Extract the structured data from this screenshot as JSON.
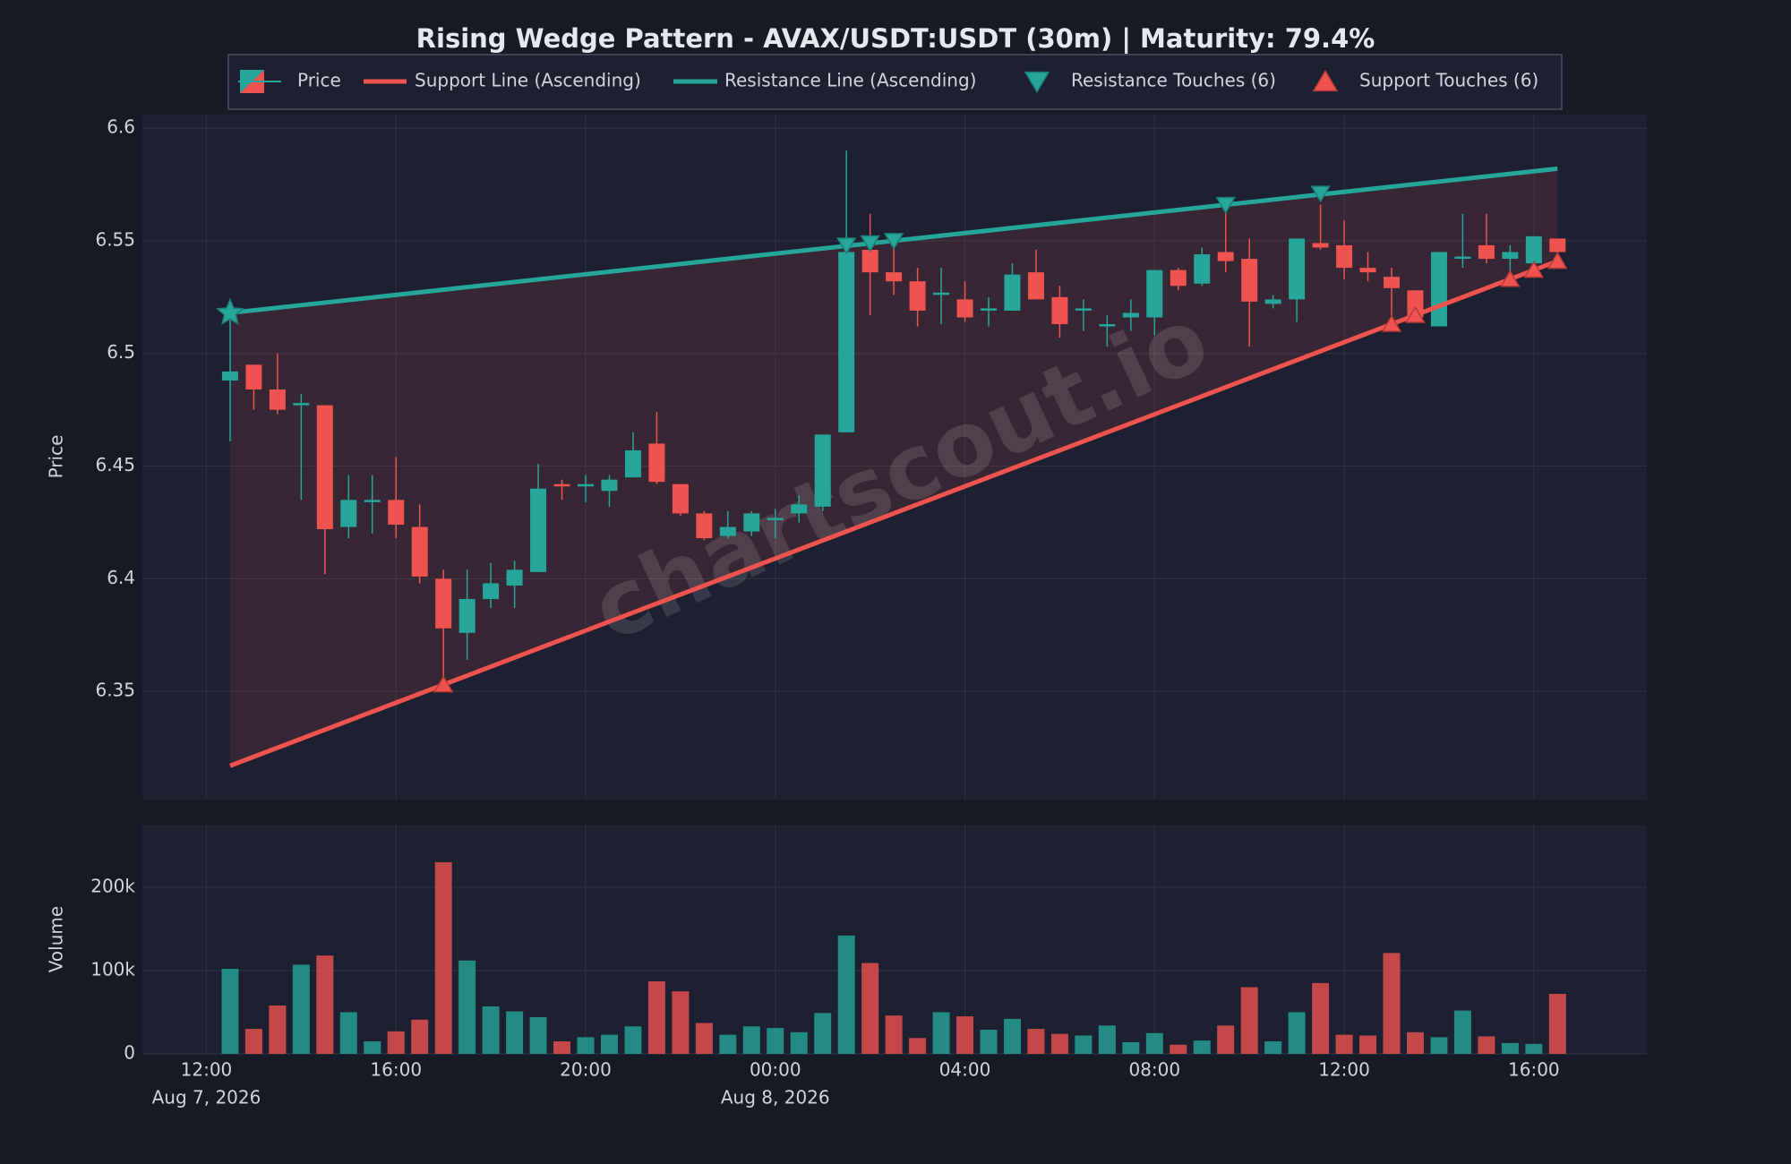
{
  "chart_data": {
    "type": "candlestick",
    "title": "Rising Wedge Pattern - AVAX/USDT:USDT (30m) | Maturity: 79.4%",
    "watermark": "chartscout.io",
    "name": "Price",
    "up_color": "#26a69a",
    "down_color": "#ef5350",
    "ylabel": "Price",
    "grid": true,
    "x": [
      "2026-08-07T12:30",
      "2026-08-07T13:00",
      "2026-08-07T13:30",
      "2026-08-07T14:00",
      "2026-08-07T14:30",
      "2026-08-07T15:00",
      "2026-08-07T15:30",
      "2026-08-07T16:00",
      "2026-08-07T16:30",
      "2026-08-07T17:00",
      "2026-08-07T17:30",
      "2026-08-07T18:00",
      "2026-08-07T18:30",
      "2026-08-07T19:00",
      "2026-08-07T19:30",
      "2026-08-07T20:00",
      "2026-08-07T20:30",
      "2026-08-07T21:00",
      "2026-08-07T21:30",
      "2026-08-07T22:00",
      "2026-08-07T22:30",
      "2026-08-07T23:00",
      "2026-08-07T23:30",
      "2026-08-08T00:00",
      "2026-08-08T00:30",
      "2026-08-08T01:00",
      "2026-08-08T01:30",
      "2026-08-08T02:00",
      "2026-08-08T02:30",
      "2026-08-08T03:00",
      "2026-08-08T03:30",
      "2026-08-08T04:00",
      "2026-08-08T04:30",
      "2026-08-08T05:00",
      "2026-08-08T05:30",
      "2026-08-08T06:00",
      "2026-08-08T06:30",
      "2026-08-08T07:00",
      "2026-08-08T07:30",
      "2026-08-08T08:00",
      "2026-08-08T08:30",
      "2026-08-08T09:00",
      "2026-08-08T09:30",
      "2026-08-08T10:00",
      "2026-08-08T10:30",
      "2026-08-08T11:00",
      "2026-08-08T11:30",
      "2026-08-08T12:00",
      "2026-08-08T12:30",
      "2026-08-08T13:00",
      "2026-08-08T13:30",
      "2026-08-08T14:00",
      "2026-08-08T14:30",
      "2026-08-08T15:00",
      "2026-08-08T15:30",
      "2026-08-08T16:00",
      "2026-08-08T16:30"
    ],
    "open": [
      6.488,
      6.495,
      6.484,
      6.477,
      6.477,
      6.423,
      6.434,
      6.435,
      6.423,
      6.4,
      6.376,
      6.391,
      6.397,
      6.403,
      6.442,
      6.441,
      6.439,
      6.445,
      6.46,
      6.442,
      6.429,
      6.419,
      6.421,
      6.426,
      6.429,
      6.432,
      6.465,
      6.546,
      6.536,
      6.532,
      6.526,
      6.524,
      6.519,
      6.519,
      6.536,
      6.525,
      6.519,
      6.512,
      6.516,
      6.516,
      6.537,
      6.531,
      6.545,
      6.542,
      6.522,
      6.524,
      6.549,
      6.548,
      6.538,
      6.534,
      6.528,
      6.512,
      6.542,
      6.548,
      6.542,
      6.54,
      6.551
    ],
    "high": [
      6.517,
      6.495,
      6.5,
      6.482,
      6.477,
      6.446,
      6.446,
      6.454,
      6.433,
      6.404,
      6.404,
      6.407,
      6.408,
      6.451,
      6.444,
      6.446,
      6.446,
      6.465,
      6.474,
      6.442,
      6.43,
      6.43,
      6.43,
      6.431,
      6.437,
      6.464,
      6.59,
      6.562,
      6.549,
      6.538,
      6.538,
      6.532,
      6.525,
      6.54,
      6.546,
      6.53,
      6.524,
      6.517,
      6.524,
      6.537,
      6.538,
      6.547,
      6.565,
      6.551,
      6.526,
      6.551,
      6.566,
      6.559,
      6.545,
      6.538,
      6.528,
      6.545,
      6.562,
      6.562,
      6.548,
      6.552,
      6.551
    ],
    "low": [
      6.461,
      6.475,
      6.473,
      6.435,
      6.402,
      6.418,
      6.42,
      6.418,
      6.398,
      6.355,
      6.364,
      6.387,
      6.387,
      6.403,
      6.435,
      6.434,
      6.432,
      6.445,
      6.442,
      6.428,
      6.417,
      6.418,
      6.419,
      6.418,
      6.425,
      6.43,
      6.465,
      6.517,
      6.526,
      6.512,
      6.513,
      6.514,
      6.512,
      6.519,
      6.524,
      6.507,
      6.51,
      6.503,
      6.51,
      6.508,
      6.528,
      6.53,
      6.536,
      6.503,
      6.52,
      6.514,
      6.546,
      6.533,
      6.532,
      6.513,
      6.515,
      6.512,
      6.538,
      6.54,
      6.535,
      6.537,
      6.541
    ],
    "close": [
      6.492,
      6.484,
      6.475,
      6.478,
      6.422,
      6.435,
      6.435,
      6.424,
      6.401,
      6.378,
      6.391,
      6.398,
      6.404,
      6.44,
      6.441,
      6.442,
      6.444,
      6.457,
      6.443,
      6.429,
      6.418,
      6.423,
      6.429,
      6.427,
      6.433,
      6.464,
      6.545,
      6.536,
      6.532,
      6.519,
      6.527,
      6.516,
      6.52,
      6.535,
      6.524,
      6.513,
      6.52,
      6.513,
      6.518,
      6.537,
      6.53,
      6.544,
      6.541,
      6.523,
      6.524,
      6.551,
      6.547,
      6.538,
      6.536,
      6.529,
      6.516,
      6.545,
      6.543,
      6.542,
      6.545,
      6.552,
      6.545
    ],
    "xlim": [
      "2026-08-07T10:39",
      "2026-08-08T18:23"
    ],
    "xticks": [
      {
        "value": "2026-08-07T12:00",
        "label": "12:00"
      },
      {
        "value": "2026-08-07T16:00",
        "label": "16:00"
      },
      {
        "value": "2026-08-07T20:00",
        "label": "20:00"
      },
      {
        "value": "2026-08-08T00:00",
        "label": "00:00"
      },
      {
        "value": "2026-08-08T04:00",
        "label": "04:00"
      },
      {
        "value": "2026-08-08T08:00",
        "label": "08:00"
      },
      {
        "value": "2026-08-08T12:00",
        "label": "12:00"
      },
      {
        "value": "2026-08-08T16:00",
        "label": "16:00"
      }
    ],
    "xdate_labels": [
      {
        "value": "2026-08-07T12:00",
        "label": "Aug 7, 2026"
      },
      {
        "value": "2026-08-08T00:00",
        "label": "Aug 8, 2026"
      }
    ],
    "ylim": [
      6.302,
      6.606
    ],
    "yticks": [
      6.35,
      6.4,
      6.45,
      6.5,
      6.55,
      6.6
    ],
    "support": {
      "name": "Support Line (Ascending)",
      "color": "#ef5350",
      "x": [
        "2026-08-07T12:30",
        "2026-08-08T16:30"
      ],
      "values": [
        6.317,
        6.541
      ]
    },
    "resistance": {
      "name": "Resistance Line (Ascending)",
      "color": "#26a69a",
      "x": [
        "2026-08-07T12:30",
        "2026-08-08T16:30"
      ],
      "values": [
        6.518,
        6.582
      ]
    },
    "resistance_touches": {
      "name": "Resistance Touches (6)",
      "color": "#26a69a",
      "x": [
        "2026-08-07T12:30",
        "2026-08-08T01:30",
        "2026-08-08T02:00",
        "2026-08-08T02:30",
        "2026-08-08T09:30",
        "2026-08-08T11:30"
      ],
      "values": [
        6.518,
        6.548,
        6.549,
        6.55,
        6.566,
        6.571
      ]
    },
    "support_touches": {
      "name": "Support Touches (6)",
      "color": "#ef5350",
      "x": [
        "2026-08-07T17:00",
        "2026-08-08T13:00",
        "2026-08-08T13:30",
        "2026-08-08T15:30",
        "2026-08-08T16:00",
        "2026-08-08T16:30"
      ],
      "values": [
        6.353,
        6.513,
        6.517,
        6.533,
        6.537,
        6.541
      ]
    },
    "volume": {
      "ylabel": "Volume",
      "values": [
        102000,
        30000,
        58000,
        107000,
        118000,
        50000,
        15000,
        27000,
        41000,
        230000,
        112000,
        57000,
        51000,
        44000,
        15000,
        20000,
        23000,
        33000,
        87000,
        75000,
        37000,
        23000,
        33000,
        31000,
        26000,
        49000,
        142000,
        109000,
        46000,
        19000,
        50000,
        45000,
        29000,
        42000,
        30000,
        24000,
        22000,
        34000,
        14000,
        25000,
        11000,
        16000,
        34000,
        80000,
        15000,
        50000,
        85000,
        23000,
        22000,
        121000,
        26000,
        20000,
        52000,
        21000,
        13000,
        12000,
        72000
      ],
      "ylim": [
        0,
        275000
      ],
      "yticks": [
        0,
        {
          "value": 100000,
          "label": "100k"
        },
        {
          "value": 200000,
          "label": "200k"
        }
      ]
    }
  }
}
